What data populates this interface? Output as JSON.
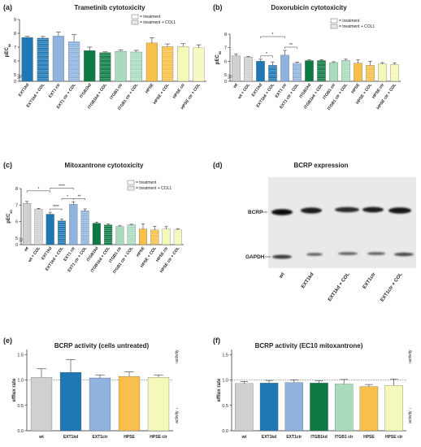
{
  "chart_data": [
    {
      "panel": "(a)",
      "type": "bar",
      "title": "Trametinib cytotoxicity",
      "ylabel": "pEC50",
      "ylim": [
        0,
        9
      ],
      "yticks": [
        0,
        5,
        6,
        7,
        8,
        9
      ],
      "legend": {
        "position": "top-right",
        "entries": [
          "= treatment",
          "= treatment + COL1"
        ]
      },
      "categories": [
        "EXT1kd",
        "EXT1kd + COL",
        "EXT1 ctr",
        "EXT1 ctr + COL",
        "ITGB1kd",
        "ITGB1kd + COL",
        "ITGB1 ctr",
        "ITGB1 ctr + COL",
        "HPSE",
        "HPSE + COL",
        "HPSE ctr",
        "HPSE ctr + COL"
      ],
      "values": [
        7.7,
        7.65,
        7.8,
        7.4,
        6.75,
        6.6,
        6.7,
        6.65,
        7.3,
        7.05,
        7.05,
        6.95
      ],
      "errors": [
        0.08,
        0.12,
        0.28,
        0.5,
        0.25,
        0.06,
        0.1,
        0.12,
        0.38,
        0.18,
        0.2,
        0.22
      ],
      "colors": [
        "#1f77b4",
        "#1f77b4",
        "#8fb3de",
        "#8fb3de",
        "#0d7a43",
        "#0d7a43",
        "#a8dcbc",
        "#a8dcbc",
        "#f8c04a",
        "#f8c04a",
        "#f4f8b8",
        "#f4f8b8"
      ],
      "hatched": [
        false,
        true,
        false,
        true,
        false,
        true,
        false,
        true,
        false,
        true,
        false,
        true
      ]
    },
    {
      "panel": "(b)",
      "type": "bar",
      "title": "Doxorubicin cytotoxicity",
      "ylabel": "pEC50",
      "ylim": [
        0,
        8
      ],
      "yticks": [
        0,
        5,
        6,
        7,
        8
      ],
      "legend": {
        "position": "top-right",
        "entries": [
          "= treatment",
          "= treatment + COL1"
        ]
      },
      "categories": [
        "wt",
        "wt + COL",
        "EXT1kd",
        "EXT1kd + COL",
        "EXT1 ctr",
        "EXT1 ctr + COL",
        "ITGB1kd",
        "ITGB1kd + COL",
        "ITGB1 ctr",
        "ITGB1 ctr + COL",
        "HPSE",
        "HPSE + COL",
        "HPSE ctr",
        "HPSE ctr + COL"
      ],
      "values": [
        6.4,
        6.3,
        6.0,
        5.7,
        6.45,
        5.85,
        6.05,
        6.05,
        5.9,
        6.05,
        5.85,
        5.7,
        5.8,
        5.75
      ],
      "errors": [
        0.12,
        0.05,
        0.15,
        0.25,
        0.35,
        0.08,
        0.05,
        0.07,
        0.06,
        0.1,
        0.25,
        0.3,
        0.1,
        0.12
      ],
      "colors": [
        "#d0d0d0",
        "#d0d0d0",
        "#1f77b4",
        "#1f77b4",
        "#8fb3de",
        "#8fb3de",
        "#0d7a43",
        "#0d7a43",
        "#a8dcbc",
        "#a8dcbc",
        "#f8c04a",
        "#f8c04a",
        "#f4f8b8",
        "#f4f8b8"
      ],
      "hatched": [
        false,
        true,
        false,
        true,
        false,
        true,
        false,
        true,
        false,
        true,
        false,
        true,
        false,
        true
      ],
      "significance": [
        {
          "from": 2,
          "to": 4,
          "label": "*"
        },
        {
          "from": 2,
          "to": 3,
          "label": "*"
        },
        {
          "from": 4,
          "to": 5,
          "label": "**"
        }
      ]
    },
    {
      "panel": "(c)",
      "type": "bar",
      "title": "Mitoxantrone cytotoxicity",
      "ylabel": "pEC50",
      "ylim": [
        0,
        8
      ],
      "yticks": [
        0,
        5,
        6,
        7,
        8
      ],
      "legend": {
        "position": "top-right",
        "entries": [
          "= treatment",
          "= treatment + COL1"
        ]
      },
      "categories": [
        "wt",
        "wt + COL",
        "EXT1kd",
        "EXT1kd + COL",
        "EXT1 ctr",
        "EXT1 ctr + COL",
        "ITGB1kd",
        "ITGB1kd + COL",
        "ITGB1 ctr",
        "ITGB1 ctr + COL",
        "HPSE",
        "HPSE + COL",
        "HPSE ctr",
        "HPSE ctr + COL"
      ],
      "values": [
        7.1,
        6.75,
        6.45,
        6.05,
        7.05,
        6.65,
        5.9,
        5.8,
        5.7,
        5.8,
        5.55,
        5.5,
        5.55,
        5.5
      ],
      "errors": [
        0.12,
        0.05,
        0.12,
        0.1,
        0.15,
        0.12,
        0.06,
        0.06,
        0.05,
        0.04,
        0.3,
        0.22,
        0.15,
        0.08
      ],
      "colors": [
        "#d0d0d0",
        "#d0d0d0",
        "#1f77b4",
        "#1f77b4",
        "#8fb3de",
        "#8fb3de",
        "#0d7a43",
        "#0d7a43",
        "#a8dcbc",
        "#a8dcbc",
        "#f8c04a",
        "#f8c04a",
        "#f4f8b8",
        "#f4f8b8"
      ],
      "hatched": [
        false,
        true,
        false,
        true,
        false,
        true,
        false,
        true,
        false,
        true,
        false,
        true,
        false,
        true
      ],
      "significance": [
        {
          "from": 0,
          "to": 2,
          "label": "*"
        },
        {
          "from": 2,
          "to": 4,
          "label": "****"
        },
        {
          "from": 4,
          "to": 5,
          "label": "**"
        },
        {
          "from": 2,
          "to": 3,
          "label": "****"
        },
        {
          "from": 3,
          "to": 4,
          "label": "*"
        }
      ]
    },
    {
      "panel": "(e)",
      "type": "bar",
      "title": "BCRP activity (cells untreated)",
      "ylabel": "efflux rate",
      "ylim": [
        0,
        1.6
      ],
      "yticks": [
        0.0,
        0.5,
        1.0,
        1.5
      ],
      "reference_line": 1.0,
      "side_labels": [
        "↑activity",
        "activity ↓"
      ],
      "categories": [
        "wt",
        "EXT1kd",
        "EXT1ctr",
        "HPSE",
        "HPSE ctr"
      ],
      "values": [
        1.05,
        1.15,
        1.04,
        1.07,
        1.05
      ],
      "errors": [
        0.17,
        0.25,
        0.06,
        0.09,
        0.05
      ],
      "colors": [
        "#d0d0d0",
        "#1f77b4",
        "#8fb3de",
        "#f8c04a",
        "#f4f8b8"
      ]
    },
    {
      "panel": "(f)",
      "type": "bar",
      "title": "BCRP activity (EC10 mitoxantrone)",
      "ylabel": "efflux rate",
      "ylim": [
        0,
        1.6
      ],
      "yticks": [
        0.0,
        0.5,
        1.0,
        1.5
      ],
      "reference_line": 1.0,
      "side_labels": [
        "↑activity",
        "activity ↓"
      ],
      "categories": [
        "wt",
        "EXT1kd",
        "EXT1ctr",
        "ITGB1kd",
        "ITGB1 ctr",
        "HPSE",
        "HPSE ctr"
      ],
      "values": [
        0.93,
        0.94,
        0.95,
        0.94,
        0.92,
        0.87,
        0.89
      ],
      "errors": [
        0.04,
        0.05,
        0.05,
        0.04,
        0.09,
        0.04,
        0.13
      ],
      "colors": [
        "#d0d0d0",
        "#1f77b4",
        "#8fb3de",
        "#0d7a43",
        "#a8dcbc",
        "#f8c04a",
        "#f4f8b8"
      ]
    }
  ],
  "blot": {
    "panel": "(d)",
    "title": "BCRP expression",
    "band_labels": [
      "BCRP",
      "GAPDH"
    ],
    "lanes": [
      "wt",
      "EXT1kd",
      "EXT1kd + COL",
      "EXT1ctr",
      "EXT1ctr + COL"
    ]
  }
}
